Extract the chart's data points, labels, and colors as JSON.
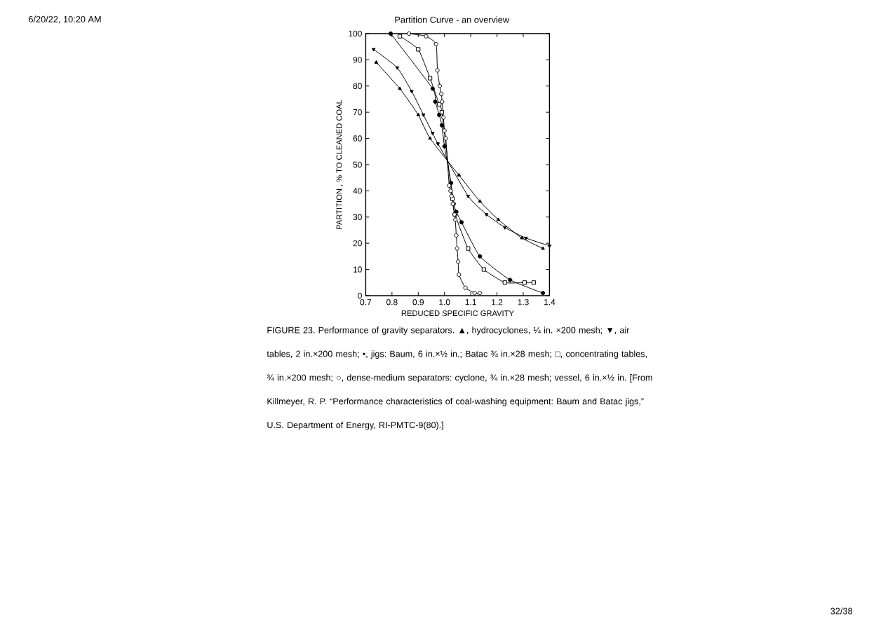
{
  "chart_data": {
    "type": "line",
    "xlabel": "REDUCED SPECIFIC GRAVITY",
    "ylabel": "PARTITION , % TO CLEANED COAL",
    "annotations": [
      "6/20/22, 10:20 AM",
      "Partition Curve - an overview",
      "FIGURE 23. Performance of gravity separators. ▲, hydrocyclones, ¼ in. ×200 mesh; ▼, air tables, 2 in.×200 mesh; •, jigs: Baum, 6 in.×½ in.; Batac ¾ in.×28 mesh; □, concentrating tables, ¾ in.×200 mesh; ○, dense-medium separators: cyclone, ¾ in.×28 mesh; vessel, 6 in.×½ in. [From Killmeyer, R. P. “Performance characteristics of coal-washing equipment: Baum and Batac jigs,” U.S. Department of Energy, RI-PMTC-9(80).]",
      "32/38"
    ],
    "xlim": [
      0.7,
      1.4
    ],
    "xticks": [
      0.7,
      0.8,
      0.9,
      {
        "value": 1,
        "label": "1.0"
      },
      1.1,
      1.2,
      1.3,
      1.4
    ],
    "ylim": [
      0,
      100
    ],
    "yticks": [
      0,
      10,
      20,
      30,
      40,
      50,
      60,
      70,
      80,
      90,
      100
    ],
    "line_style": "solid",
    "series": [
      {
        "color": "#000000",
        "marker": "triangle",
        "x": [
          0.74,
          0.83,
          0.9,
          0.945,
          1.055,
          1.135,
          1.205,
          1.295,
          1.375
        ],
        "values": [
          89,
          79,
          69,
          60,
          46,
          36,
          29,
          22,
          18
        ]
      },
      {
        "color": "#000000",
        "marker": "triangle",
        "x": [
          0.73,
          0.82,
          0.875,
          0.92,
          0.955,
          0.975,
          1.09,
          1.16,
          1.23,
          1.31,
          1.4
        ],
        "values": [
          94,
          87,
          78,
          69,
          62,
          58,
          38,
          31,
          26,
          22,
          19
        ]
      },
      {
        "color": "#000000",
        "marker": "circle",
        "x": [
          0.795,
          0.955,
          0.965,
          0.98,
          0.99,
          1.0,
          1.025,
          1.035,
          1.045,
          1.065,
          1.135,
          1.25,
          1.375
        ],
        "values": [
          100,
          79,
          74,
          69,
          65,
          57,
          43,
          35,
          32,
          28,
          15,
          6,
          1
        ]
      },
      {
        "color": "#000000",
        "marker": "square",
        "x": [
          0.83,
          0.9,
          0.945,
          0.98,
          0.99,
          1.03,
          1.04,
          1.09,
          1.15,
          1.23,
          1.305,
          1.34
        ],
        "values": [
          99,
          94,
          83,
          73,
          70,
          37,
          31,
          18,
          10,
          5,
          5,
          5
        ]
      },
      {
        "color": "#000000",
        "marker": "circle",
        "x": [
          0.865,
          0.93,
          0.968,
          0.973,
          0.982,
          0.988,
          0.991,
          0.996,
          1.0,
          1.005,
          1.018,
          1.023,
          1.027,
          1.032,
          1.038,
          1.041,
          1.045,
          1.048,
          1.052,
          1.055,
          1.08,
          1.115,
          1.135
        ],
        "values": [
          100,
          99,
          96,
          86,
          80,
          77,
          74,
          68,
          63,
          60,
          42,
          40,
          38,
          35,
          31,
          29,
          23,
          18,
          13,
          8,
          3,
          1,
          1
        ]
      }
    ]
  }
}
